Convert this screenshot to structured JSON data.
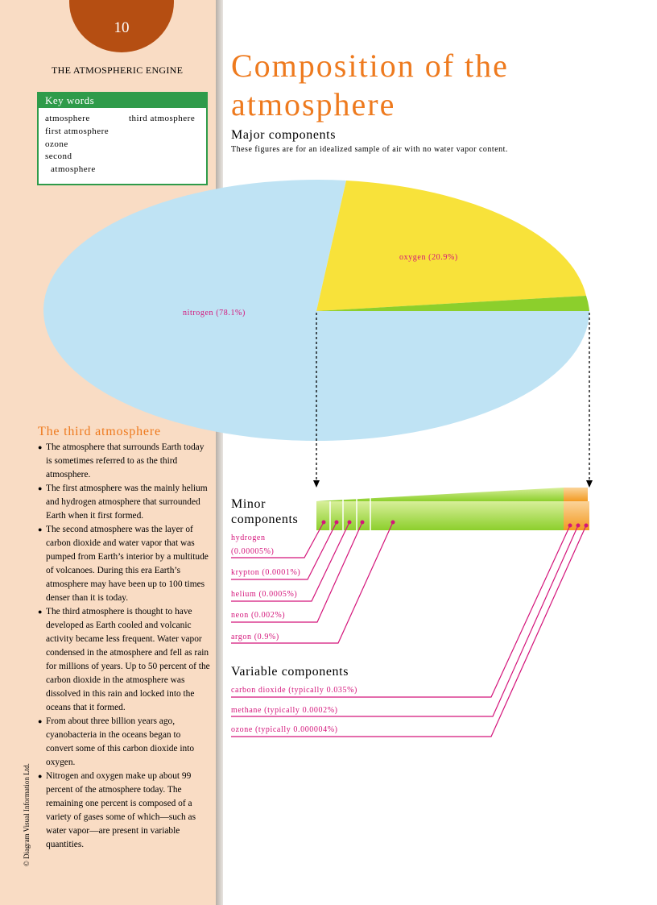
{
  "page_number": "10",
  "running_head": "THE ATMOSPHERIC ENGINE",
  "key_words": {
    "title": "Key words",
    "items": [
      "atmosphere",
      "first atmosphere",
      "ozone",
      "second",
      "atmosphere",
      "third atmosphere"
    ]
  },
  "title": [
    "Composition of the",
    "atmosphere"
  ],
  "major": {
    "heading": "Major components",
    "note": "These figures are for an idealized sample of air with no water vapor content.",
    "labels": [
      "nitrogen (78.1%)",
      "oxygen (20.9%)"
    ]
  },
  "minor": {
    "heading": [
      "Minor",
      "components"
    ],
    "items": [
      [
        "hydrogen",
        "(0.00005%)"
      ],
      [
        "krypton (0.0001%)"
      ],
      [
        "helium (0.0005%)"
      ],
      [
        "neon (0.002%)"
      ],
      [
        "argon (0.9%)"
      ]
    ]
  },
  "variable": {
    "heading": "Variable components",
    "items": [
      "carbon dioxide (typically 0.035%)",
      "methane (typically 0.0002%)",
      "ozone (typically 0.000004%)"
    ]
  },
  "sidebar": {
    "heading": "The third atmosphere",
    "bullets": [
      "The atmosphere that surrounds Earth today is sometimes referred to as the third atmosphere.",
      "The first atmosphere was the mainly helium and hydrogen atmosphere that surrounded Earth when it first formed.",
      "The second atmosphere was the layer of carbon dioxide and water vapor that was pumped from Earth’s interior by a multitude of volcanoes. During this era Earth’s atmosphere may have been up to 100 times denser than it is today.",
      "The third atmosphere is thought to have developed as Earth cooled and volcanic activity became less frequent. Water vapor condensed in the atmosphere and fell as rain for millions of years. Up to 50 percent of the carbon dioxide in the atmosphere was dissolved in this rain and locked into the oceans that it formed.",
      "From about three billion years ago, cyanobacteria in the oceans began to convert some of this carbon dioxide into oxygen.",
      "Nitrogen and oxygen make up about 99 percent of the atmosphere today. The remaining one percent is composed of a variety of gases some of which—such as water vapor—are present in variable quantities."
    ]
  },
  "credit": "© Diagram Visual Information Ltd."
}
